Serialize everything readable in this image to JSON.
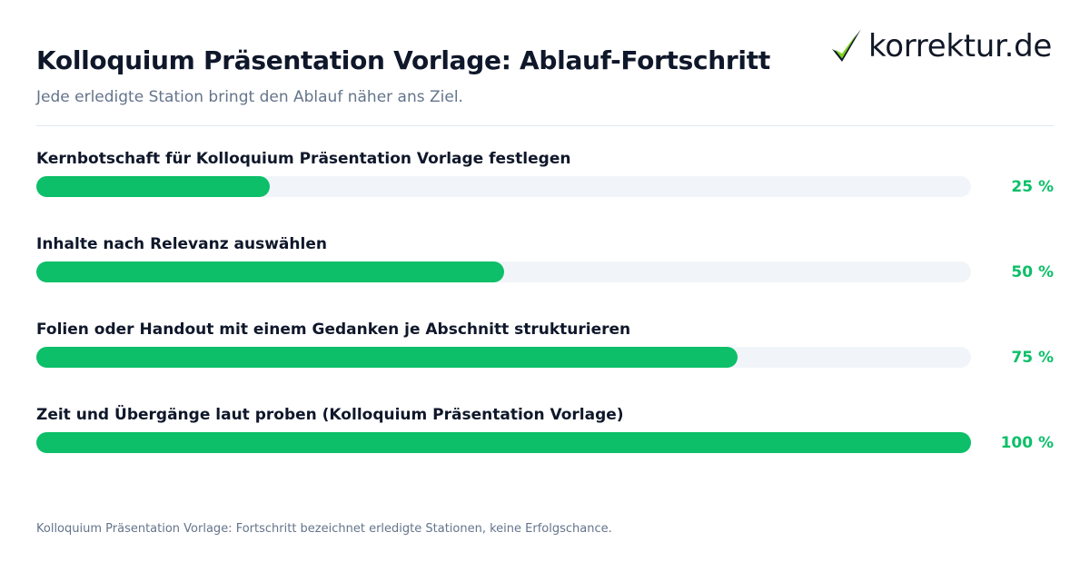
{
  "header": {
    "title": "Kolloquium Präsentation Vorlage: Ablauf-Fortschritt",
    "subtitle": "Jede erledigte Station bringt den Ablauf näher ans Ziel."
  },
  "logo": {
    "text": "korrektur.de",
    "icon": "checkmark-icon"
  },
  "colors": {
    "accent": "#0cbf68",
    "track": "#f1f5f9",
    "title": "#0f172a",
    "muted": "#64748b"
  },
  "chart_data": {
    "type": "bar",
    "orientation": "horizontal",
    "unit": "%",
    "xlim": [
      0,
      100
    ],
    "categories": [
      "Kernbotschaft für Kolloquium Präsentation Vorlage festlegen",
      "Inhalte nach Relevanz auswählen",
      "Folien oder Handout mit einem Gedanken je Abschnitt strukturieren",
      "Zeit und Übergänge laut proben (Kolloquium Präsentation Vorlage)"
    ],
    "values": [
      25,
      50,
      75,
      100
    ],
    "value_labels": [
      "25 %",
      "50 %",
      "75 %",
      "100 %"
    ]
  },
  "footer": {
    "note": "Kolloquium Präsentation Vorlage: Fortschritt bezeichnet erledigte Stationen, keine Erfolgschance."
  }
}
